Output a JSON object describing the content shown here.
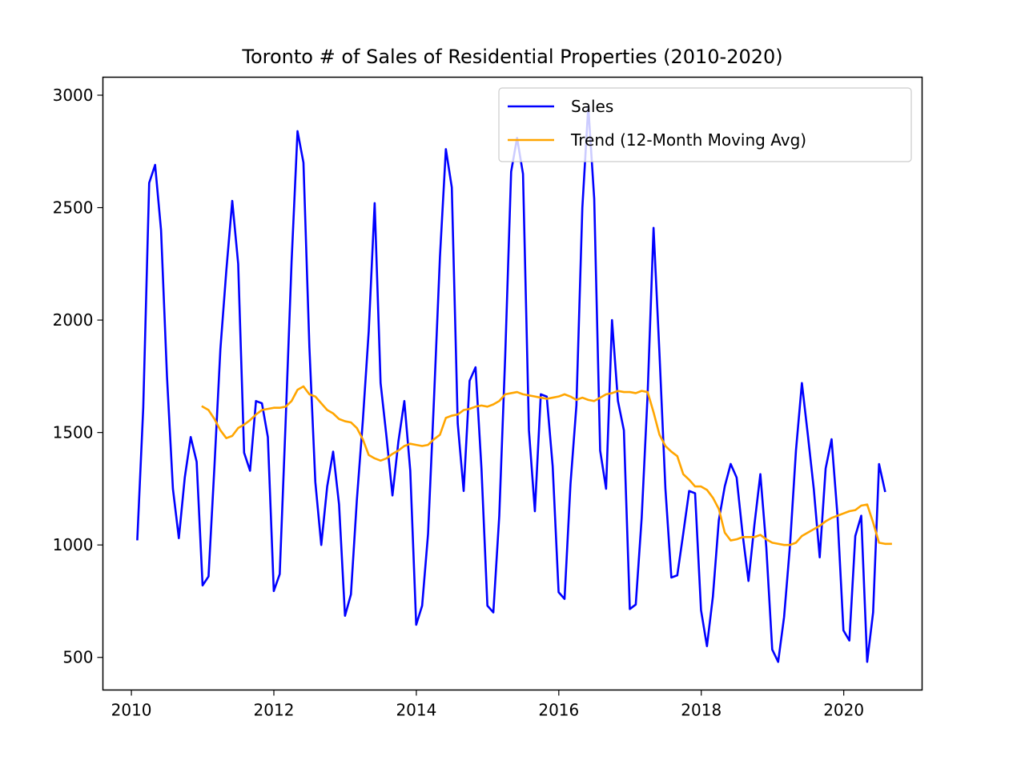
{
  "chart_data": {
    "type": "line",
    "title": "Toronto # of Sales of Residential Properties (2010-2020)",
    "xlabel": "",
    "ylabel": "",
    "xlim": [
      2009.6,
      2021.1
    ],
    "ylim": [
      355,
      3080
    ],
    "x_ticks": [
      2010,
      2012,
      2014,
      2016,
      2018,
      2020
    ],
    "y_ticks": [
      500,
      1000,
      1500,
      2000,
      2500,
      3000
    ],
    "grid": false,
    "legend_position": "upper right",
    "x_start": 2010.083,
    "x_step": 0.0833,
    "series": [
      {
        "name": "Sales",
        "color": "#0000ff",
        "values": [
          1025,
          1610,
          2610,
          2690,
          2400,
          1750,
          1250,
          1030,
          1300,
          1480,
          1370,
          820,
          860,
          1350,
          1870,
          2220,
          2530,
          2250,
          1410,
          1330,
          1640,
          1630,
          1480,
          795,
          870,
          1550,
          2260,
          2840,
          2700,
          1880,
          1280,
          1000,
          1260,
          1415,
          1180,
          685,
          780,
          1200,
          1550,
          1950,
          2520,
          1720,
          1480,
          1220,
          1460,
          1640,
          1330,
          645,
          730,
          1050,
          1650,
          2280,
          2760,
          2590,
          1540,
          1240,
          1730,
          1790,
          1340,
          730,
          700,
          1130,
          1840,
          2660,
          2810,
          2650,
          1510,
          1150,
          1670,
          1660,
          1350,
          790,
          760,
          1270,
          1620,
          2500,
          2950,
          2540,
          1420,
          1250,
          2000,
          1640,
          1510,
          715,
          735,
          1120,
          1670,
          2410,
          1850,
          1250,
          855,
          865,
          1050,
          1240,
          1230,
          710,
          550,
          770,
          1110,
          1260,
          1360,
          1300,
          1050,
          840,
          1090,
          1315,
          990,
          535,
          480,
          680,
          1000,
          1420,
          1720,
          1490,
          1250,
          945,
          1340,
          1470,
          1130,
          620,
          575,
          1040,
          1130,
          480,
          700,
          1360,
          1240
        ]
      },
      {
        "name": "Trend (12-Month Moving Avg)",
        "color": "#ffa500",
        "values": [
          null,
          null,
          null,
          null,
          null,
          null,
          null,
          null,
          null,
          null,
          null,
          1615,
          1600,
          1560,
          1510,
          1475,
          1485,
          1520,
          1535,
          1555,
          1580,
          1600,
          1605,
          1610,
          1610,
          1615,
          1640,
          1690,
          1705,
          1670,
          1660,
          1630,
          1600,
          1585,
          1560,
          1550,
          1545,
          1520,
          1470,
          1400,
          1385,
          1375,
          1385,
          1405,
          1420,
          1440,
          1450,
          1445,
          1440,
          1445,
          1470,
          1490,
          1565,
          1575,
          1580,
          1600,
          1605,
          1615,
          1620,
          1615,
          1625,
          1640,
          1670,
          1675,
          1680,
          1670,
          1665,
          1660,
          1655,
          1650,
          1655,
          1660,
          1670,
          1660,
          1645,
          1655,
          1645,
          1640,
          1655,
          1670,
          1675,
          1685,
          1680,
          1680,
          1675,
          1685,
          1680,
          1590,
          1490,
          1440,
          1415,
          1395,
          1315,
          1290,
          1260,
          1260,
          1245,
          1210,
          1160,
          1055,
          1020,
          1025,
          1035,
          1035,
          1035,
          1045,
          1025,
          1010,
          1005,
          1000,
          1000,
          1010,
          1040,
          1055,
          1070,
          1085,
          1105,
          1120,
          1130,
          1140,
          1150,
          1155,
          1175,
          1180,
          1100,
          1010,
          1005,
          1005
        ]
      }
    ]
  }
}
